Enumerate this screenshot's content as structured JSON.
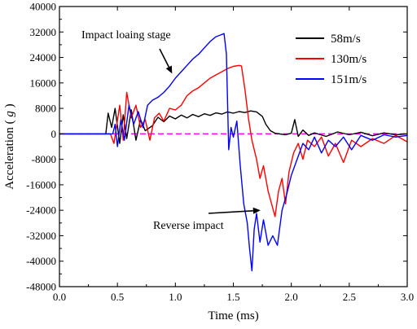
{
  "chart_data": {
    "type": "line",
    "xlabel": "Time (ms)",
    "ylabel_main": "Acceleration ( ",
    "ylabel_unit": "g",
    "ylabel_close": " )",
    "xlim": [
      0.0,
      3.0
    ],
    "ylim": [
      -48000,
      40000
    ],
    "xticks": [
      0.0,
      0.5,
      1.0,
      1.5,
      2.0,
      2.5,
      3.0
    ],
    "xtick_labels": [
      "0.0",
      "0.5",
      "1.0",
      "1.5",
      "2.0",
      "2.5",
      "3.0"
    ],
    "yticks": [
      40000,
      32000,
      24000,
      16000,
      8000,
      0,
      -8000,
      -16000,
      -24000,
      -32000,
      -40000,
      -48000
    ],
    "ytick_labels": [
      "40000",
      "32000",
      "24000",
      "16000",
      "8000",
      "0",
      "-8000",
      "-16000",
      "-24000",
      "-32000",
      "-40000",
      "-48000"
    ],
    "grid": false,
    "legend_position": "top-right",
    "zero_line": {
      "y": 0,
      "color": "#ff00ff",
      "style": "dashed"
    },
    "annotations": [
      {
        "text": "Impact loaing stage",
        "points_to": [
          1.0,
          21500
        ]
      },
      {
        "text": "Reverse impact",
        "points_to": [
          1.65,
          -23000
        ]
      }
    ],
    "series": [
      {
        "name": "58m/s",
        "color": "#000000",
        "points": [
          [
            0.0,
            0
          ],
          [
            0.4,
            0
          ],
          [
            0.42,
            6500
          ],
          [
            0.45,
            2000
          ],
          [
            0.48,
            8000
          ],
          [
            0.52,
            -3000
          ],
          [
            0.55,
            6000
          ],
          [
            0.58,
            -1500
          ],
          [
            0.62,
            7500
          ],
          [
            0.66,
            -2000
          ],
          [
            0.7,
            4500
          ],
          [
            0.74,
            1000
          ],
          [
            0.8,
            2500
          ],
          [
            0.85,
            5200
          ],
          [
            0.9,
            3800
          ],
          [
            0.95,
            5600
          ],
          [
            1.0,
            4700
          ],
          [
            1.05,
            5900
          ],
          [
            1.1,
            5000
          ],
          [
            1.15,
            6100
          ],
          [
            1.2,
            5400
          ],
          [
            1.25,
            6300
          ],
          [
            1.3,
            5800
          ],
          [
            1.35,
            6600
          ],
          [
            1.4,
            6200
          ],
          [
            1.45,
            6900
          ],
          [
            1.5,
            6500
          ],
          [
            1.55,
            7000
          ],
          [
            1.6,
            6700
          ],
          [
            1.65,
            7200
          ],
          [
            1.7,
            6900
          ],
          [
            1.75,
            5500
          ],
          [
            1.78,
            3000
          ],
          [
            1.82,
            1000
          ],
          [
            1.86,
            200
          ],
          [
            1.9,
            0
          ],
          [
            1.95,
            -300
          ],
          [
            2.0,
            200
          ],
          [
            2.03,
            4500
          ],
          [
            2.06,
            -800
          ],
          [
            2.1,
            1200
          ],
          [
            2.15,
            -500
          ],
          [
            2.2,
            300
          ],
          [
            2.3,
            -800
          ],
          [
            2.4,
            600
          ],
          [
            2.5,
            -300
          ],
          [
            2.6,
            500
          ],
          [
            2.7,
            -600
          ],
          [
            2.8,
            300
          ],
          [
            2.9,
            -300
          ],
          [
            3.0,
            0
          ]
        ]
      },
      {
        "name": "130m/s",
        "color": "#ff0000",
        "points": [
          [
            0.0,
            0
          ],
          [
            0.44,
            0
          ],
          [
            0.47,
            -3000
          ],
          [
            0.52,
            9000
          ],
          [
            0.55,
            -2000
          ],
          [
            0.58,
            13000
          ],
          [
            0.62,
            5000
          ],
          [
            0.66,
            9000
          ],
          [
            0.7,
            2000
          ],
          [
            0.74,
            4500
          ],
          [
            0.78,
            -2000
          ],
          [
            0.82,
            5000
          ],
          [
            0.86,
            6500
          ],
          [
            0.9,
            4000
          ],
          [
            0.95,
            8000
          ],
          [
            1.0,
            7500
          ],
          [
            1.05,
            9000
          ],
          [
            1.1,
            12000
          ],
          [
            1.15,
            13500
          ],
          [
            1.2,
            14500
          ],
          [
            1.25,
            16000
          ],
          [
            1.3,
            17500
          ],
          [
            1.35,
            18500
          ],
          [
            1.4,
            19500
          ],
          [
            1.45,
            20500
          ],
          [
            1.5,
            21200
          ],
          [
            1.55,
            21500
          ],
          [
            1.57,
            21300
          ],
          [
            1.6,
            14000
          ],
          [
            1.63,
            5000
          ],
          [
            1.66,
            -2000
          ],
          [
            1.7,
            -8000
          ],
          [
            1.73,
            -14000
          ],
          [
            1.76,
            -10000
          ],
          [
            1.8,
            -18000
          ],
          [
            1.83,
            -22000
          ],
          [
            1.86,
            -26000
          ],
          [
            1.89,
            -18000
          ],
          [
            1.92,
            -14000
          ],
          [
            1.95,
            -22000
          ],
          [
            1.98,
            -12000
          ],
          [
            2.02,
            -6000
          ],
          [
            2.06,
            -3000
          ],
          [
            2.1,
            -8000
          ],
          [
            2.14,
            -2000
          ],
          [
            2.2,
            -4000
          ],
          [
            2.26,
            -1000
          ],
          [
            2.32,
            -7000
          ],
          [
            2.38,
            -3000
          ],
          [
            2.45,
            -9000
          ],
          [
            2.52,
            -2000
          ],
          [
            2.6,
            -4000
          ],
          [
            2.7,
            -1500
          ],
          [
            2.8,
            -3000
          ],
          [
            2.9,
            -500
          ],
          [
            3.0,
            -2500
          ]
        ]
      },
      {
        "name": "151m/s",
        "color": "#0000ff",
        "points": [
          [
            0.0,
            0
          ],
          [
            0.46,
            0
          ],
          [
            0.48,
            3000
          ],
          [
            0.5,
            -4000
          ],
          [
            0.53,
            4500
          ],
          [
            0.56,
            -2000
          ],
          [
            0.6,
            9000
          ],
          [
            0.64,
            3000
          ],
          [
            0.68,
            7000
          ],
          [
            0.72,
            2000
          ],
          [
            0.76,
            9000
          ],
          [
            0.8,
            10500
          ],
          [
            0.85,
            11500
          ],
          [
            0.9,
            13000
          ],
          [
            0.95,
            15000
          ],
          [
            1.0,
            17500
          ],
          [
            1.05,
            19500
          ],
          [
            1.1,
            21500
          ],
          [
            1.15,
            23500
          ],
          [
            1.2,
            25000
          ],
          [
            1.25,
            27000
          ],
          [
            1.3,
            29000
          ],
          [
            1.35,
            30500
          ],
          [
            1.4,
            31200
          ],
          [
            1.42,
            31500
          ],
          [
            1.44,
            25000
          ],
          [
            1.46,
            -5000
          ],
          [
            1.48,
            2000
          ],
          [
            1.5,
            -1000
          ],
          [
            1.53,
            4000
          ],
          [
            1.56,
            -10000
          ],
          [
            1.59,
            -22000
          ],
          [
            1.62,
            -28000
          ],
          [
            1.64,
            -36000
          ],
          [
            1.66,
            -43000
          ],
          [
            1.68,
            -30000
          ],
          [
            1.7,
            -25000
          ],
          [
            1.73,
            -34000
          ],
          [
            1.76,
            -27000
          ],
          [
            1.8,
            -35000
          ],
          [
            1.84,
            -32000
          ],
          [
            1.88,
            -35000
          ],
          [
            1.92,
            -24000
          ],
          [
            1.96,
            -19000
          ],
          [
            2.0,
            -13000
          ],
          [
            2.05,
            -8000
          ],
          [
            2.1,
            -3000
          ],
          [
            2.15,
            -5000
          ],
          [
            2.2,
            -1000
          ],
          [
            2.26,
            -6000
          ],
          [
            2.32,
            -2000
          ],
          [
            2.38,
            -4000
          ],
          [
            2.45,
            -1000
          ],
          [
            2.52,
            -5000
          ],
          [
            2.6,
            -500
          ],
          [
            2.7,
            -2000
          ],
          [
            2.8,
            -300
          ],
          [
            2.9,
            -1000
          ],
          [
            3.0,
            -500
          ]
        ]
      }
    ]
  }
}
